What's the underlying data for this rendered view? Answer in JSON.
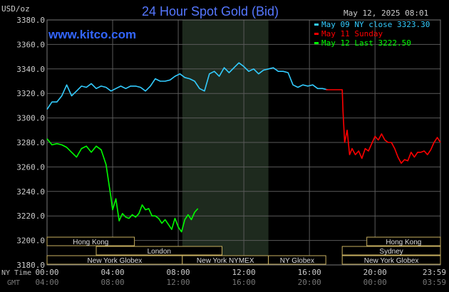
{
  "header": {
    "unit": "USD/oz",
    "title": "24 Hour Spot Gold (Bid)",
    "datetime": "May 12, 2025 08:01",
    "site": "www.kitco.com"
  },
  "legend": [
    {
      "text": "May 09 NY close 3323.30",
      "color": "#33ccff"
    },
    {
      "text": "May 11 Sunday",
      "color": "#ff0000"
    },
    {
      "text": "May 12 Last 3222.50",
      "color": "#00ff00"
    }
  ],
  "axis": {
    "row1_label": "NY Time",
    "row2_label": "GMT",
    "ny_ticks": [
      "00:00",
      "04:00",
      "08:00",
      "12:00",
      "16:00",
      "20:00",
      "23:59"
    ],
    "gmt_ticks": [
      "04:00",
      "08:00",
      "12:00",
      "16:00",
      "20:00",
      "00:00",
      "03:59"
    ],
    "y_ticks": [
      "3380.0",
      "3360.0",
      "3340.0",
      "3320.0",
      "3300.0",
      "3280.0",
      "3260.0",
      "3240.0",
      "3220.0",
      "3200.0",
      "3180.0"
    ]
  },
  "sessions": [
    {
      "label": "Hong Kong",
      "start": 0.0,
      "end": 5.33,
      "row": 0
    },
    {
      "label": "Hong Kong",
      "start": 19.5,
      "end": 23.99,
      "row": 0
    },
    {
      "label": "London",
      "start": 3.0,
      "end": 10.67,
      "row": 1
    },
    {
      "label": "Sydney",
      "start": 18.0,
      "end": 23.99,
      "row": 1
    },
    {
      "label": "New York Globex",
      "start": 0.0,
      "end": 8.25,
      "row": 2
    },
    {
      "label": "New York NYMEX",
      "start": 8.25,
      "end": 13.5,
      "row": 2
    },
    {
      "label": "NY Globex",
      "start": 13.5,
      "end": 17.0,
      "row": 2
    },
    {
      "label": "New York Globex",
      "start": 18.0,
      "end": 23.99,
      "row": 2
    }
  ],
  "chart_data": {
    "type": "line",
    "title": "24 Hour Spot Gold (Bid)",
    "ylabel": "USD/oz",
    "xlabel": "NY Time",
    "ylim": [
      3180,
      3380
    ],
    "xlim": [
      0,
      23.99
    ],
    "shaded_region": [
      8.25,
      13.5
    ],
    "grid": true,
    "series": [
      {
        "name": "May 09 NY close 3323.30",
        "color": "#33ccff",
        "x": [
          0.0,
          0.3,
          0.6,
          0.9,
          1.2,
          1.5,
          1.8,
          2.1,
          2.4,
          2.7,
          3.0,
          3.3,
          3.6,
          3.9,
          4.2,
          4.5,
          4.8,
          5.1,
          5.4,
          5.7,
          6.0,
          6.3,
          6.6,
          6.9,
          7.2,
          7.5,
          7.8,
          8.1,
          8.4,
          8.7,
          9.0,
          9.3,
          9.6,
          9.9,
          10.2,
          10.5,
          10.8,
          11.1,
          11.4,
          11.7,
          12.0,
          12.3,
          12.6,
          12.9,
          13.2,
          13.5,
          13.8,
          14.1,
          14.4,
          14.7,
          15.0,
          15.3,
          15.6,
          15.9,
          16.2,
          16.5,
          16.8,
          17.1
        ],
        "values": [
          3307,
          3313,
          3313,
          3318,
          3327,
          3318,
          3322,
          3326,
          3325,
          3328,
          3324,
          3326,
          3325,
          3322,
          3324,
          3326,
          3324,
          3326,
          3326,
          3325,
          3322,
          3326,
          3332,
          3330,
          3330,
          3331,
          3334,
          3336,
          3333,
          3332,
          3330,
          3324,
          3322,
          3336,
          3338,
          3334,
          3341,
          3337,
          3341,
          3345,
          3342,
          3338,
          3340,
          3336,
          3339,
          3340,
          3341,
          3338,
          3338,
          3337,
          3327,
          3325,
          3327,
          3326,
          3327,
          3324,
          3324,
          3323
        ]
      },
      {
        "name": "May 11 Sunday",
        "color": "#ff0000",
        "x": [
          17.0,
          17.8,
          18.0,
          18.05,
          18.15,
          18.3,
          18.45,
          18.6,
          18.8,
          19.0,
          19.2,
          19.4,
          19.6,
          19.8,
          20.0,
          20.2,
          20.4,
          20.6,
          20.8,
          21.0,
          21.2,
          21.4,
          21.6,
          21.8,
          22.0,
          22.2,
          22.4,
          22.6,
          22.8,
          23.0,
          23.2,
          23.4,
          23.6,
          23.8,
          23.99
        ],
        "values": [
          3323,
          3323,
          3323,
          3305,
          3280,
          3290,
          3270,
          3275,
          3270,
          3273,
          3267,
          3275,
          3273,
          3279,
          3285,
          3282,
          3287,
          3282,
          3280,
          3280,
          3275,
          3268,
          3263,
          3266,
          3265,
          3272,
          3268,
          3272,
          3272,
          3273,
          3270,
          3274,
          3280,
          3284,
          3280
        ]
      },
      {
        "name": "May 12 Last 3222.50",
        "color": "#00ff00",
        "x": [
          0.0,
          0.3,
          0.6,
          0.9,
          1.2,
          1.5,
          1.8,
          2.1,
          2.4,
          2.7,
          3.0,
          3.3,
          3.6,
          3.9,
          4.0,
          4.2,
          4.4,
          4.6,
          4.8,
          5.0,
          5.2,
          5.4,
          5.6,
          5.8,
          6.0,
          6.2,
          6.4,
          6.6,
          6.8,
          7.0,
          7.2,
          7.4,
          7.6,
          7.8,
          8.0,
          8.2,
          8.4,
          8.6,
          8.8,
          9.0,
          9.2
        ],
        "values": [
          3283,
          3278,
          3279,
          3278,
          3276,
          3272,
          3268,
          3275,
          3277,
          3272,
          3277,
          3274,
          3262,
          3235,
          3225,
          3234,
          3216,
          3222,
          3219,
          3218,
          3221,
          3219,
          3222,
          3229,
          3225,
          3226,
          3220,
          3220,
          3218,
          3214,
          3217,
          3213,
          3209,
          3218,
          3211,
          3207,
          3217,
          3221,
          3217,
          3223,
          3226
        ]
      }
    ]
  }
}
